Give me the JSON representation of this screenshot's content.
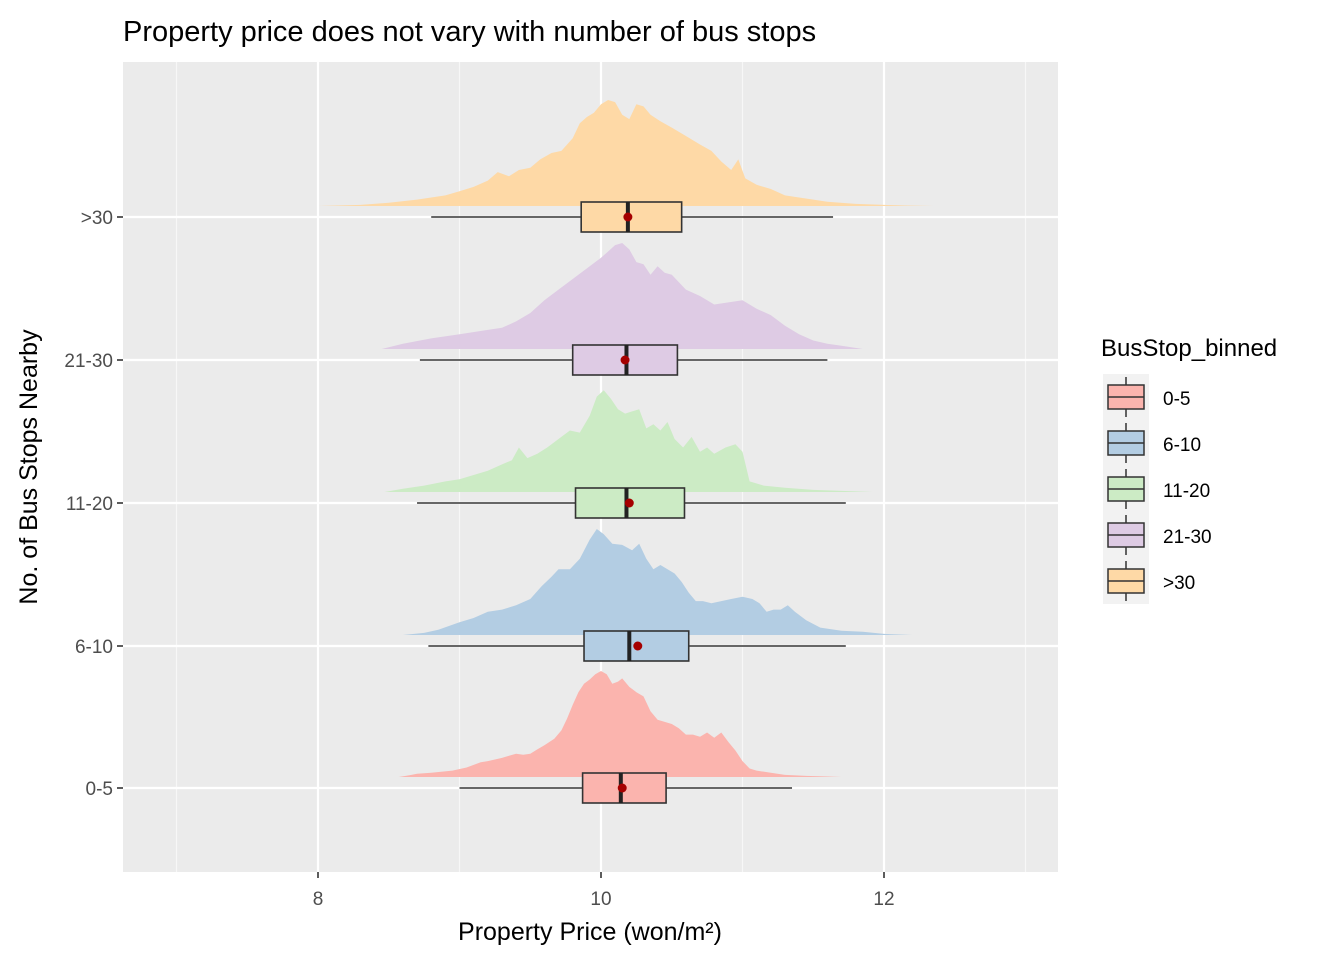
{
  "chart_data": {
    "type": "raincloud",
    "title": "Property price does not vary with number of bus stops",
    "xlabel": "Property Price (won/m²)",
    "ylabel": "No. of Bus Stops Nearby",
    "xlim": [
      6.65,
      13.2
    ],
    "x_ticks": [
      {
        "value": 8,
        "label": "8"
      },
      {
        "value": 10,
        "label": "10"
      },
      {
        "value": 12,
        "label": "12"
      }
    ],
    "x_minor_ticks": [
      7,
      9,
      11,
      13
    ],
    "grid": true,
    "legend": {
      "title": "BusStop_binned",
      "position": "right",
      "entries": [
        {
          "label": "0-5",
          "color": "#FBB4AE"
        },
        {
          "label": "6-10",
          "color": "#B3CDE3"
        },
        {
          "label": "11-20",
          "color": "#CCEBC5"
        },
        {
          "label": "21-30",
          "color": "#DECBE4"
        },
        {
          "label": ">30",
          "color": "#FED9A6"
        }
      ]
    },
    "series": [
      {
        "name": "0-5",
        "color": "#FBB4AE",
        "box": {
          "min": 9.0,
          "q1": 9.87,
          "median": 10.14,
          "q3": 10.46,
          "max": 11.35
        },
        "mean": 10.15,
        "density_x": [
          8.57,
          8.62,
          8.66,
          8.7,
          8.8,
          8.95,
          9.05,
          9.15,
          9.2,
          9.3,
          9.35,
          9.4,
          9.45,
          9.5,
          9.55,
          9.6,
          9.67,
          9.72,
          9.76,
          9.8,
          9.84,
          9.88,
          9.92,
          9.96,
          10.0,
          10.04,
          10.08,
          10.12,
          10.15,
          10.2,
          10.25,
          10.3,
          10.35,
          10.4,
          10.45,
          10.5,
          10.55,
          10.6,
          10.65,
          10.7,
          10.75,
          10.8,
          10.85,
          10.9,
          10.95,
          11.0,
          11.05,
          11.1,
          11.2,
          11.3,
          11.45,
          11.6,
          11.7
        ],
        "density_y": [
          0.0,
          0.01,
          0.02,
          0.03,
          0.04,
          0.06,
          0.09,
          0.14,
          0.15,
          0.18,
          0.2,
          0.22,
          0.21,
          0.22,
          0.26,
          0.3,
          0.36,
          0.44,
          0.55,
          0.68,
          0.8,
          0.88,
          0.92,
          0.97,
          1.0,
          0.97,
          0.88,
          0.9,
          0.93,
          0.85,
          0.8,
          0.76,
          0.62,
          0.54,
          0.52,
          0.5,
          0.46,
          0.4,
          0.4,
          0.38,
          0.42,
          0.37,
          0.42,
          0.33,
          0.25,
          0.15,
          0.08,
          0.06,
          0.04,
          0.02,
          0.01,
          0.005,
          0.0
        ]
      },
      {
        "name": "6-10",
        "color": "#B3CDE3",
        "box": {
          "min": 8.78,
          "q1": 9.88,
          "median": 10.2,
          "q3": 10.62,
          "max": 11.73
        },
        "mean": 10.26,
        "density_x": [
          8.47,
          8.6,
          8.75,
          8.85,
          9.0,
          9.1,
          9.2,
          9.3,
          9.4,
          9.5,
          9.58,
          9.65,
          9.7,
          9.78,
          9.85,
          9.92,
          9.97,
          10.02,
          10.08,
          10.15,
          10.22,
          10.27,
          10.32,
          10.37,
          10.42,
          10.47,
          10.52,
          10.57,
          10.62,
          10.67,
          10.72,
          10.78,
          10.85,
          10.92,
          11.0,
          11.07,
          11.12,
          11.17,
          11.22,
          11.27,
          11.32,
          11.37,
          11.45,
          11.55,
          11.7,
          11.85,
          12.0,
          12.2
        ],
        "density_y": [
          0.0,
          0.0,
          0.02,
          0.05,
          0.12,
          0.16,
          0.22,
          0.24,
          0.28,
          0.34,
          0.46,
          0.55,
          0.62,
          0.62,
          0.72,
          0.9,
          1.0,
          0.95,
          0.86,
          0.85,
          0.8,
          0.86,
          0.72,
          0.62,
          0.66,
          0.62,
          0.58,
          0.5,
          0.4,
          0.32,
          0.32,
          0.3,
          0.32,
          0.34,
          0.36,
          0.34,
          0.3,
          0.22,
          0.24,
          0.24,
          0.28,
          0.22,
          0.14,
          0.07,
          0.04,
          0.03,
          0.01,
          0.0
        ]
      },
      {
        "name": "11-20",
        "color": "#CCEBC5",
        "box": {
          "min": 8.7,
          "q1": 9.82,
          "median": 10.18,
          "q3": 10.59,
          "max": 11.73
        },
        "mean": 10.2,
        "density_x": [
          8.47,
          8.6,
          8.75,
          8.9,
          9.0,
          9.1,
          9.2,
          9.3,
          9.37,
          9.42,
          9.48,
          9.55,
          9.62,
          9.7,
          9.78,
          9.85,
          9.92,
          9.97,
          10.02,
          10.07,
          10.12,
          10.17,
          10.22,
          10.27,
          10.32,
          10.37,
          10.42,
          10.47,
          10.52,
          10.58,
          10.64,
          10.7,
          10.75,
          10.8,
          10.88,
          10.95,
          11.0,
          11.05,
          11.15,
          11.3,
          11.5,
          11.7,
          11.92
        ],
        "density_y": [
          0.0,
          0.03,
          0.06,
          0.1,
          0.12,
          0.16,
          0.2,
          0.26,
          0.3,
          0.42,
          0.32,
          0.36,
          0.42,
          0.5,
          0.58,
          0.56,
          0.72,
          0.9,
          0.96,
          0.88,
          0.78,
          0.74,
          0.76,
          0.78,
          0.6,
          0.64,
          0.58,
          0.66,
          0.5,
          0.42,
          0.52,
          0.38,
          0.42,
          0.36,
          0.42,
          0.45,
          0.38,
          0.1,
          0.06,
          0.04,
          0.02,
          0.01,
          0.0
        ]
      },
      {
        "name": "21-30",
        "color": "#DECBE4",
        "box": {
          "min": 8.72,
          "q1": 9.8,
          "median": 10.18,
          "q3": 10.54,
          "max": 11.6
        },
        "mean": 10.17,
        "density_x": [
          8.45,
          8.6,
          8.8,
          9.0,
          9.2,
          9.3,
          9.4,
          9.5,
          9.6,
          9.7,
          9.8,
          9.9,
          10.0,
          10.05,
          10.1,
          10.15,
          10.2,
          10.25,
          10.3,
          10.35,
          10.4,
          10.45,
          10.5,
          10.6,
          10.7,
          10.8,
          10.9,
          11.0,
          11.1,
          11.2,
          11.3,
          11.4,
          11.5,
          11.6,
          11.7,
          11.85
        ],
        "density_y": [
          0.0,
          0.05,
          0.1,
          0.14,
          0.18,
          0.2,
          0.26,
          0.34,
          0.46,
          0.56,
          0.66,
          0.76,
          0.86,
          0.92,
          0.98,
          1.0,
          0.94,
          0.82,
          0.8,
          0.7,
          0.78,
          0.72,
          0.7,
          0.56,
          0.5,
          0.42,
          0.44,
          0.46,
          0.38,
          0.32,
          0.22,
          0.14,
          0.08,
          0.05,
          0.03,
          0.0
        ]
      },
      {
        "name": ">30",
        "color": "#FED9A6",
        "box": {
          "min": 8.8,
          "q1": 9.86,
          "median": 10.19,
          "q3": 10.57,
          "max": 11.64
        },
        "mean": 10.19,
        "density_x": [
          6.95,
          7.5,
          8.0,
          8.3,
          8.5,
          8.7,
          8.9,
          9.0,
          9.1,
          9.2,
          9.27,
          9.35,
          9.42,
          9.5,
          9.57,
          9.65,
          9.72,
          9.8,
          9.85,
          9.9,
          9.95,
          10.0,
          10.05,
          10.1,
          10.15,
          10.2,
          10.25,
          10.3,
          10.35,
          10.42,
          10.5,
          10.6,
          10.7,
          10.78,
          10.85,
          10.92,
          10.97,
          11.02,
          11.1,
          11.2,
          11.3,
          11.4,
          11.5,
          11.6,
          11.8,
          12.0,
          12.15,
          12.35
        ],
        "density_y": [
          0.0,
          0.0,
          0.0,
          0.01,
          0.03,
          0.06,
          0.1,
          0.14,
          0.18,
          0.24,
          0.32,
          0.28,
          0.34,
          0.36,
          0.44,
          0.5,
          0.52,
          0.64,
          0.78,
          0.84,
          0.88,
          0.96,
          1.0,
          0.98,
          0.86,
          0.82,
          0.96,
          0.94,
          0.86,
          0.8,
          0.74,
          0.66,
          0.58,
          0.52,
          0.42,
          0.34,
          0.44,
          0.26,
          0.2,
          0.16,
          0.1,
          0.08,
          0.06,
          0.04,
          0.02,
          0.01,
          0.005,
          0.0
        ]
      }
    ]
  }
}
